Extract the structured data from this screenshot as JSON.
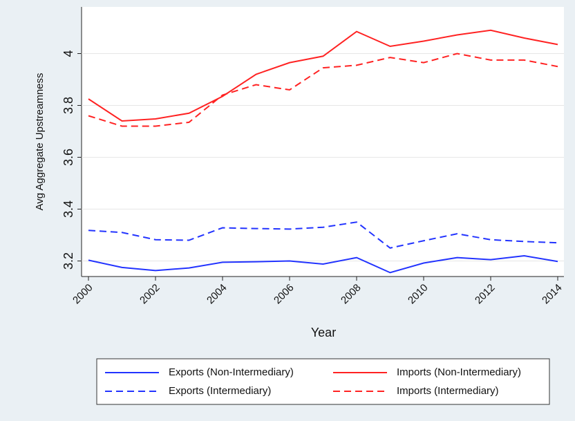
{
  "chart_data": {
    "type": "line",
    "x_label": "Year",
    "y_label": "Avg Aggregate Upstreamness",
    "x": [
      2000,
      2001,
      2002,
      2003,
      2004,
      2005,
      2006,
      2007,
      2008,
      2009,
      2010,
      2011,
      2012,
      2013,
      2014
    ],
    "xlim": [
      2000,
      2014
    ],
    "xticks": [
      2000,
      2002,
      2004,
      2006,
      2008,
      2010,
      2012,
      2014
    ],
    "ylim": [
      3.14,
      4.18
    ],
    "yticks": [
      3.2,
      3.4,
      3.6,
      3.8,
      4
    ],
    "grid": true,
    "legend_position": "bottom",
    "series": [
      {
        "name": "Exports (Non-Intermediary)",
        "color": "#2233ff",
        "line_style": "solid",
        "values": [
          3.203,
          3.175,
          3.163,
          3.173,
          3.195,
          3.197,
          3.2,
          3.188,
          3.213,
          3.155,
          3.192,
          3.213,
          3.205,
          3.22,
          3.198
        ]
      },
      {
        "name": "Imports (Non-Intermediary)",
        "color": "#ff2222",
        "line_style": "solid",
        "values": [
          3.825,
          3.74,
          3.748,
          3.77,
          3.835,
          3.92,
          3.965,
          3.99,
          4.085,
          4.028,
          4.048,
          4.072,
          4.09,
          4.06,
          4.035
        ]
      },
      {
        "name": "Exports (Intermediary)",
        "color": "#2233ff",
        "line_style": "dashed",
        "values": [
          3.318,
          3.31,
          3.282,
          3.28,
          3.328,
          3.325,
          3.323,
          3.33,
          3.35,
          3.25,
          3.278,
          3.305,
          3.282,
          3.275,
          3.27
        ]
      },
      {
        "name": "Imports (Intermediary)",
        "color": "#ff2222",
        "line_style": "dashed",
        "values": [
          3.76,
          3.72,
          3.72,
          3.735,
          3.84,
          3.88,
          3.86,
          3.945,
          3.955,
          3.985,
          3.965,
          4.0,
          3.975,
          3.975,
          3.95
        ]
      }
    ]
  }
}
